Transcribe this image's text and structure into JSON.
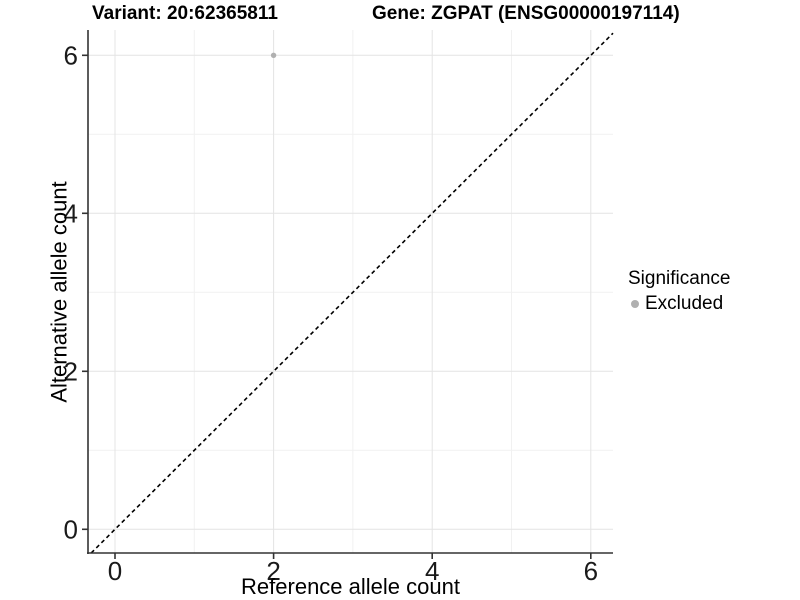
{
  "chart_data": {
    "type": "scatter",
    "titles": [
      "Variant: 20:62365811",
      "Gene: ZGPAT (ENSG00000197114)"
    ],
    "xlabel": "Reference allele count",
    "ylabel": "Alternative allele count",
    "xlim": [
      -0.34,
      6.28
    ],
    "ylim": [
      -0.3,
      6.32
    ],
    "xticks": [
      0,
      2,
      4,
      6
    ],
    "yticks": [
      0,
      2,
      4,
      6
    ],
    "minor_xticks": [
      1,
      3,
      5
    ],
    "minor_yticks": [
      1,
      3,
      5
    ],
    "grid": true,
    "legend": {
      "title": "Significance",
      "position": "right"
    },
    "series": [
      {
        "name": "Excluded",
        "color": "#b0b0b0",
        "points": [
          {
            "x": 2,
            "y": 6
          }
        ]
      }
    ],
    "reference_line": {
      "type": "identity",
      "style": "dashed",
      "color": "#000000"
    }
  }
}
